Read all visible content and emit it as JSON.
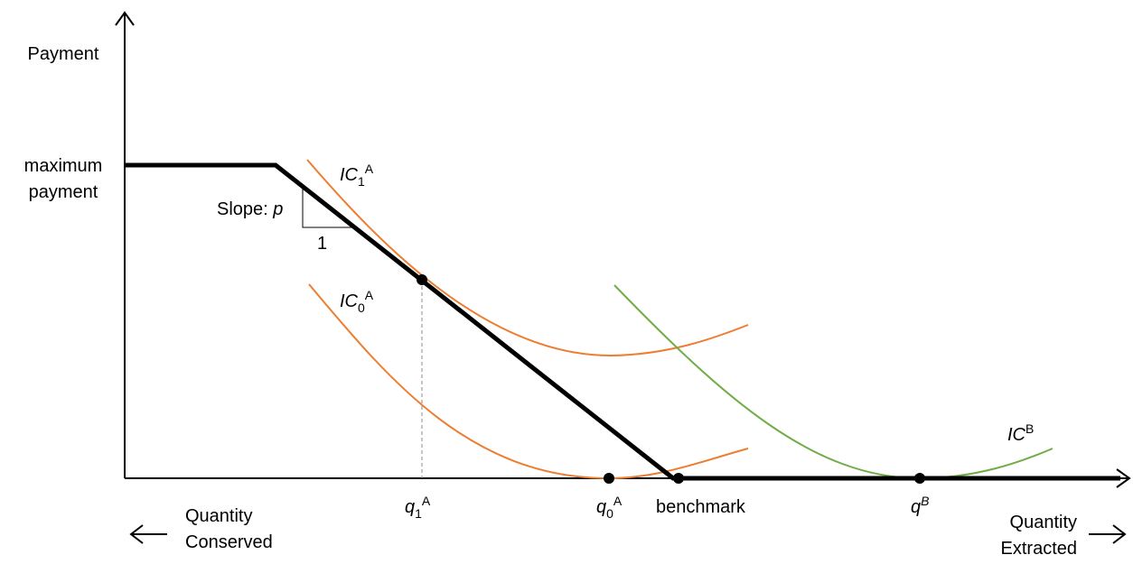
{
  "axes": {
    "y_label": "Payment",
    "x_left_label": [
      "Quantity",
      "Conserved"
    ],
    "x_right_label": [
      "Quantity",
      "Extracted"
    ]
  },
  "payment_label": [
    "maximum",
    "payment"
  ],
  "slope": {
    "text": "Slope: ",
    "symbol": "p",
    "run": "1"
  },
  "curves": [
    {
      "base": "IC",
      "sub": "1",
      "sup": "A"
    },
    {
      "base": "IC",
      "sub": "0",
      "sup": "A"
    },
    {
      "base": "IC",
      "sup": "B"
    }
  ],
  "points": [
    {
      "base": "q",
      "sub": "1",
      "sup": "A"
    },
    {
      "base": "q",
      "sub": "0",
      "sup": "A"
    },
    {
      "base": "benchmark"
    },
    {
      "base": "q",
      "sup": "B"
    }
  ]
}
